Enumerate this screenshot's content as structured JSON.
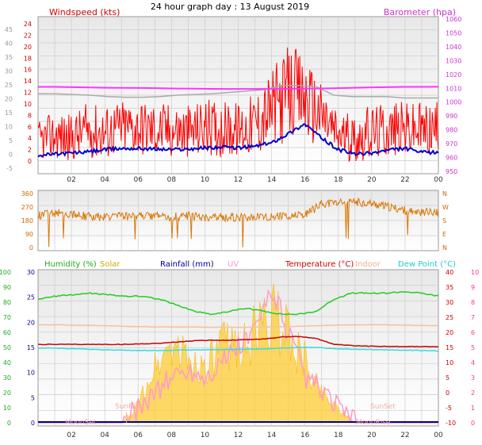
{
  "header": {
    "title": "24 hour graph day : 13 August 2019"
  },
  "colors": {
    "wind": "#ff0000",
    "gust": "#ff0000",
    "avg_wind": "#0000cc",
    "pressure": "#ff33ff",
    "pressure_old": "#aaaaaa",
    "wind_dir": "#d97706",
    "humidity": "#22cc22",
    "solar": "#ffcc33",
    "rainfall": "#000099",
    "uv": "#ff99cc",
    "temperature": "#cc0000",
    "indoor": "#f4c0a0",
    "dew_point": "#33dddd",
    "plot_bg_top": "#f2f2f2",
    "plot_bg_bottom": "#ffffff"
  },
  "chart_data": [
    {
      "id": "wind",
      "type": "line",
      "x_ticks": [
        "02",
        "04",
        "06",
        "08",
        "10",
        "12",
        "14",
        "16",
        "18",
        "20",
        "22",
        "00"
      ],
      "left_axis": {
        "label": "Windspeed (kts)",
        "ticks_outer": [
          "45",
          "40",
          "35",
          "30",
          "25",
          "20",
          "15",
          "10",
          "5",
          "0",
          "-5"
        ],
        "ticks_inner": [
          "24",
          "22",
          "20",
          "18",
          "16",
          "14",
          "12",
          "10",
          "8",
          "6",
          "4",
          "2",
          "0"
        ]
      },
      "right_axis": {
        "label": "Barometer (hpa)",
        "ticks": [
          "1060",
          "1050",
          "1040",
          "1030",
          "1020",
          "1010",
          "1000",
          "990",
          "980",
          "970",
          "960",
          "950"
        ]
      },
      "series": [
        {
          "name": "Windspeed",
          "hourly_avg": [
            3.5,
            4.5,
            4,
            5.5,
            5,
            6,
            6,
            5.5,
            5.5,
            5,
            6,
            5.5,
            5.5,
            6.5,
            9,
            12,
            11,
            8,
            4.5,
            4,
            5,
            5.5,
            5.5,
            5.5
          ],
          "amplitude": [
            2.5,
            3,
            3,
            3.5,
            3.5,
            3.5,
            3.5,
            3.5,
            3.5,
            3.5,
            3.5,
            3.5,
            3.5,
            4,
            5,
            6,
            5.5,
            4,
            3,
            3,
            3.5,
            3.5,
            3.5,
            3.5
          ]
        },
        {
          "name": "Average wind",
          "hourly": [
            1,
            1.2,
            1.4,
            1.6,
            2,
            2.2,
            2.2,
            2.1,
            2,
            2.1,
            2.3,
            2.4,
            2.3,
            2.6,
            3.2,
            4.8,
            6.5,
            4,
            2,
            1.2,
            1.4,
            1.9,
            2.2,
            1.5
          ]
        },
        {
          "name": "Barometer",
          "hourly": [
            1011,
            1011,
            1010.8,
            1010.6,
            1010.4,
            1010.3,
            1010.2,
            1010,
            1009.8,
            1009.7,
            1009.6,
            1009.5,
            1009.5,
            1009.5,
            1009.6,
            1009.7,
            1009.8,
            1010,
            1010.3,
            1010.6,
            1010.8,
            1011,
            1011,
            1011.1
          ]
        },
        {
          "name": "Barometer (previous)",
          "hourly": [
            1006,
            1006,
            1005.5,
            1005,
            1004,
            1003.5,
            1003.5,
            1004,
            1005,
            1005.5,
            1006,
            1007,
            1008,
            1009,
            1012,
            1012,
            1011,
            1005,
            1004,
            1004,
            1004,
            1003,
            1003,
            1003
          ]
        }
      ]
    },
    {
      "id": "direction",
      "type": "scatter",
      "x_ticks": [
        "02",
        "04",
        "06",
        "08",
        "10",
        "12",
        "14",
        "16",
        "18",
        "20",
        "22",
        "00"
      ],
      "left_axis": {
        "ticks": [
          "360",
          "270",
          "180",
          "90",
          "0"
        ]
      },
      "right_axis": {
        "ticks": [
          "N",
          "W",
          "S",
          "E",
          "N"
        ]
      },
      "series": [
        {
          "name": "Wind direction",
          "hourly": [
            210,
            225,
            220,
            205,
            200,
            210,
            205,
            205,
            200,
            210,
            200,
            200,
            200,
            200,
            200,
            205,
            210,
            280,
            285,
            290,
            280,
            260,
            240,
            230
          ]
        }
      ]
    },
    {
      "id": "env",
      "type": "line",
      "x_ticks": [
        "02",
        "04",
        "06",
        "08",
        "10",
        "12",
        "14",
        "16",
        "18",
        "20",
        "22",
        "00"
      ],
      "legend": [
        "Humidity (%)",
        "Solar",
        "Rainfall (mm)",
        "UV",
        "Temperature (°C)",
        "Indoor",
        "Dew Point (°C)"
      ],
      "axes": {
        "humidity_ticks": [
          "100",
          "90",
          "80",
          "70",
          "60",
          "50",
          "40",
          "30",
          "20",
          "10",
          "0"
        ],
        "temperature_ticks": [
          "30",
          "25",
          "20",
          "15",
          "10",
          "5",
          "0"
        ],
        "right_temp_ticks": [
          "40",
          "35",
          "30",
          "25",
          "20",
          "15",
          "10",
          "5",
          "0",
          "-5",
          "-10"
        ],
        "uv_ticks": [
          "10",
          "9",
          "8",
          "7",
          "6",
          "5",
          "4",
          "3",
          "2",
          "1",
          "0"
        ]
      },
      "annotations": [
        "MoonSet",
        "SunRise",
        "SunSet",
        "MoonRise"
      ],
      "series": [
        {
          "name": "Humidity (%)",
          "hourly": [
            82,
            84,
            85,
            86,
            85,
            84,
            84,
            82,
            78,
            74,
            72,
            74,
            76,
            74,
            72,
            72,
            74,
            82,
            86,
            86,
            86,
            87,
            86,
            84
          ]
        },
        {
          "name": "Indoor",
          "hourly": [
            22.5,
            22.5,
            22.4,
            22.3,
            22.2,
            22,
            21.9,
            21.8,
            21.8,
            21.8,
            21.7,
            21.7,
            21.7,
            21.8,
            21.9,
            22,
            22.2,
            22.4,
            22.5,
            22.5,
            22.5,
            22.4,
            22.3,
            22.2
          ]
        },
        {
          "name": "Temperature (°C)",
          "hourly": [
            16,
            16,
            16,
            16,
            16,
            16,
            16.2,
            16.4,
            16.8,
            17.2,
            17.4,
            17.4,
            17.6,
            17.8,
            18.5,
            18.6,
            18,
            16,
            15.6,
            15.4,
            15.4,
            15.3,
            15.3,
            15.2
          ]
        },
        {
          "name": "Dew Point (°C)",
          "hourly": [
            14.8,
            14.8,
            14.6,
            14.4,
            14.2,
            14.1,
            14,
            14,
            14.1,
            14.2,
            14.2,
            14.3,
            14.4,
            14.5,
            14.8,
            15,
            15,
            14.6,
            14.4,
            14.3,
            14.2,
            14.1,
            14,
            13.8
          ]
        },
        {
          "name": "Solar",
          "hourly": [
            0,
            0,
            0,
            0,
            0,
            0,
            1.2,
            3.5,
            5,
            4,
            3.5,
            5,
            5,
            6,
            7,
            6,
            4,
            2,
            1,
            0,
            0,
            0,
            0,
            0
          ]
        },
        {
          "name": "UV",
          "hourly": [
            0,
            0,
            0,
            0,
            0,
            0,
            1,
            2,
            3,
            3.5,
            3,
            4,
            5,
            6,
            9,
            6,
            3,
            2,
            1,
            0,
            0,
            0,
            0,
            0
          ]
        }
      ]
    }
  ]
}
